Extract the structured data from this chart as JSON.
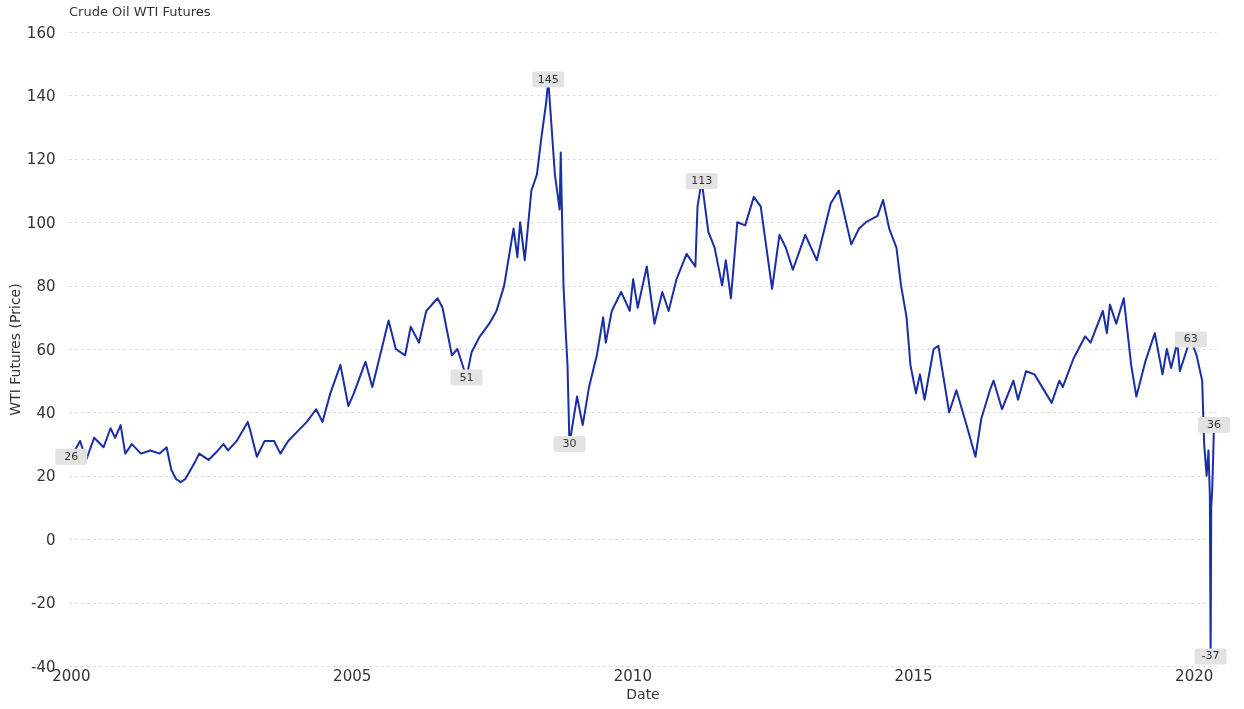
{
  "chart_data": {
    "type": "line",
    "title": "Crude Oil WTI Futures",
    "xlabel": "Date",
    "ylabel": "WTI Futures (Price)",
    "xlim": [
      "1999-12-20",
      "2020-05-25"
    ],
    "xticks": [
      {
        "value": "2000-01-01",
        "label": "2000"
      },
      {
        "value": "2005-01-01",
        "label": "2005"
      },
      {
        "value": "2010-01-01",
        "label": "2010"
      },
      {
        "value": "2015-01-01",
        "label": "2015"
      },
      {
        "value": "2020-01-01",
        "label": "2020"
      }
    ],
    "ylim": [
      -40,
      160
    ],
    "yticks": [
      -40,
      -20,
      0,
      20,
      40,
      60,
      80,
      100,
      120,
      140,
      160
    ],
    "grid": "y",
    "line_style": "solid",
    "marker": "none",
    "x": [
      "2000-01-04",
      "2000-03-01",
      "2000-04-10",
      "2000-06-01",
      "2000-08-01",
      "2000-09-15",
      "2000-10-15",
      "2000-11-20",
      "2000-12-20",
      "2001-02-01",
      "2001-04-01",
      "2001-06-01",
      "2001-08-01",
      "2001-09-15",
      "2001-10-15",
      "2001-11-15",
      "2001-12-15",
      "2002-01-15",
      "2002-03-15",
      "2002-04-15",
      "2002-06-15",
      "2002-08-15",
      "2002-09-20",
      "2002-10-20",
      "2002-12-15",
      "2003-02-25",
      "2003-03-15",
      "2003-04-25",
      "2003-06-15",
      "2003-08-15",
      "2003-09-25",
      "2003-11-15",
      "2004-01-15",
      "2004-03-15",
      "2004-05-15",
      "2004-06-25",
      "2004-08-15",
      "2004-10-20",
      "2004-12-10",
      "2005-01-15",
      "2005-04-01",
      "2005-05-15",
      "2005-07-15",
      "2005-08-29",
      "2005-10-15",
      "2005-12-15",
      "2006-01-20",
      "2006-03-15",
      "2006-05-01",
      "2006-07-14",
      "2006-08-15",
      "2006-10-15",
      "2006-11-20",
      "2007-01-18",
      "2007-02-20",
      "2007-04-15",
      "2007-06-15",
      "2007-08-01",
      "2007-09-20",
      "2007-11-20",
      "2007-12-15",
      "2008-01-02",
      "2008-02-01",
      "2008-03-15",
      "2008-04-20",
      "2008-05-20",
      "2008-06-20",
      "2008-07-03",
      "2008-08-15",
      "2008-09-15",
      "2008-09-22",
      "2008-10-10",
      "2008-10-25",
      "2008-11-05",
      "2008-11-18",
      "2009-01-06",
      "2009-02-12",
      "2009-03-25",
      "2009-05-15",
      "2009-06-25",
      "2009-07-12",
      "2009-08-20",
      "2009-10-20",
      "2009-12-15",
      "2010-01-06",
      "2010-02-05",
      "2010-04-05",
      "2010-05-25",
      "2010-07-15",
      "2010-08-25",
      "2010-10-15",
      "2010-12-20",
      "2011-02-15",
      "2011-03-01",
      "2011-03-28",
      "2011-05-10",
      "2011-06-20",
      "2011-08-08",
      "2011-09-01",
      "2011-10-04",
      "2011-11-15",
      "2012-01-05",
      "2012-03-01",
      "2012-04-15",
      "2012-06-28",
      "2012-08-15",
      "2012-09-25",
      "2012-11-10",
      "2013-01-30",
      "2013-04-15",
      "2013-05-20",
      "2013-07-15",
      "2013-09-05",
      "2013-11-25",
      "2014-01-15",
      "2014-03-01",
      "2014-05-15",
      "2014-06-20",
      "2014-07-30",
      "2014-09-15",
      "2014-10-15",
      "2014-11-20",
      "2014-12-15",
      "2015-01-20",
      "2015-02-15",
      "2015-03-17",
      "2015-05-15",
      "2015-06-15",
      "2015-08-24",
      "2015-10-10",
      "2015-12-15",
      "2016-02-11",
      "2016-03-20",
      "2016-05-15",
      "2016-06-08",
      "2016-08-02",
      "2016-10-15",
      "2016-11-14",
      "2017-01-05",
      "2017-03-01",
      "2017-06-21",
      "2017-08-10",
      "2017-09-01",
      "2017-11-10",
      "2018-01-25",
      "2018-03-01",
      "2018-05-20",
      "2018-06-15",
      "2018-07-05",
      "2018-08-15",
      "2018-10-03",
      "2018-11-20",
      "2018-12-24",
      "2019-02-20",
      "2019-04-23",
      "2019-06-12",
      "2019-07-10",
      "2019-08-07",
      "2019-09-16",
      "2019-10-03",
      "2019-11-25",
      "2019-12-13",
      "2020-01-20",
      "2020-02-25",
      "2020-03-09",
      "2020-03-25",
      "2020-04-06",
      "2020-04-15",
      "2020-04-20",
      "2020-04-24",
      "2020-04-30",
      "2020-05-06",
      "2020-05-12"
    ],
    "values": [
      26,
      31,
      25,
      32,
      29,
      35,
      32,
      36,
      27,
      30,
      27,
      28,
      27,
      29,
      22,
      19,
      18,
      19,
      24,
      27,
      25,
      28,
      30,
      28,
      31,
      37,
      34,
      26,
      31,
      31,
      27,
      31,
      34,
      37,
      41,
      37,
      46,
      55,
      42,
      46,
      56,
      48,
      60,
      69,
      60,
      58,
      67,
      62,
      72,
      76,
      73,
      58,
      60,
      51,
      59,
      64,
      68,
      72,
      80,
      98,
      89,
      100,
      88,
      110,
      115,
      127,
      138,
      145,
      115,
      104,
      122,
      80,
      65,
      55,
      30,
      45,
      36,
      48,
      58,
      70,
      62,
      72,
      78,
      72,
      82,
      73,
      86,
      68,
      78,
      72,
      82,
      90,
      86,
      105,
      113,
      97,
      92,
      80,
      88,
      76,
      100,
      99,
      108,
      105,
      79,
      96,
      92,
      85,
      96,
      88,
      95,
      106,
      110,
      93,
      98,
      100,
      102,
      107,
      98,
      92,
      80,
      70,
      55,
      46,
      52,
      44,
      60,
      61,
      40,
      47,
      36,
      26,
      38,
      47,
      50,
      41,
      50,
      44,
      53,
      52,
      43,
      50,
      48,
      57,
      64,
      62,
      72,
      65,
      74,
      68,
      76,
      55,
      45,
      56,
      65,
      52,
      60,
      54,
      62,
      53,
      61,
      63,
      58,
      50,
      30,
      20,
      28,
      14,
      -37,
      10,
      15,
      25,
      36
    ],
    "value_labels": [
      "26",
      null,
      null,
      null,
      null,
      null,
      null,
      null,
      null,
      null,
      null,
      null,
      null,
      null,
      null,
      null,
      null,
      null,
      null,
      null,
      null,
      null,
      null,
      null,
      null,
      null,
      null,
      null,
      null,
      null,
      null,
      null,
      null,
      null,
      null,
      null,
      null,
      null,
      null,
      null,
      null,
      null,
      null,
      null,
      null,
      null,
      null,
      null,
      null,
      null,
      null,
      null,
      null,
      "51",
      null,
      null,
      null,
      null,
      null,
      null,
      null,
      null,
      null,
      null,
      null,
      null,
      null,
      "145",
      null,
      null,
      null,
      null,
      null,
      null,
      "30",
      null,
      null,
      null,
      null,
      null,
      null,
      null,
      null,
      null,
      null,
      null,
      null,
      null,
      null,
      null,
      null,
      null,
      null,
      null,
      "113",
      null,
      null,
      null,
      null,
      null,
      null,
      null,
      null,
      null,
      null,
      null,
      null,
      null,
      null,
      null,
      null,
      null,
      null,
      null,
      null,
      null,
      null,
      null,
      null,
      null,
      null,
      null,
      null,
      null,
      null,
      null,
      null,
      null,
      null,
      null,
      null,
      null,
      null,
      null,
      null,
      null,
      null,
      null,
      null,
      null,
      null,
      null,
      null,
      null,
      null,
      null,
      null,
      null,
      null,
      null,
      null,
      null,
      null,
      null,
      null,
      null,
      null,
      null,
      null,
      null,
      null,
      "63",
      null,
      null,
      null,
      null,
      null,
      null,
      "-37",
      null,
      null,
      null,
      "36"
    ],
    "color": "#1a2ea6"
  }
}
